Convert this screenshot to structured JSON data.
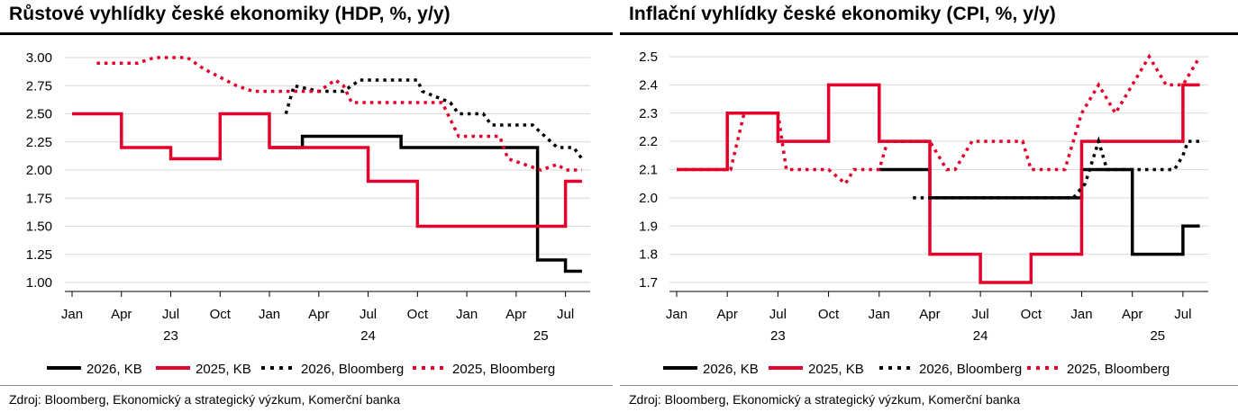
{
  "colors": {
    "kb2026": "#000000",
    "kb2025": "#e4002b",
    "bb2026": "#000000",
    "bb2025": "#e4002b",
    "grid": "#d9d9d9"
  },
  "legend": [
    {
      "label": "2026, KB",
      "style": "solid",
      "color": "#000000"
    },
    {
      "label": "2025, KB",
      "style": "solid",
      "color": "#e4002b"
    },
    {
      "label": "2026, Bloomberg",
      "style": "dotted",
      "color": "#000000"
    },
    {
      "label": "2025, Bloomberg",
      "style": "dotted",
      "color": "#e4002b"
    }
  ],
  "chart_data": [
    {
      "type": "line",
      "title": "Růstové vyhlídky české ekonomiky (HDP, %, y/y)",
      "source": "Zdroj: Bloomberg, Ekonomický a strategický výzkum, Komerční banka",
      "x_ticks": [
        "Jan",
        "Apr",
        "Jul",
        "Oct",
        "Jan",
        "Apr",
        "Jul",
        "Oct",
        "Jan",
        "Apr",
        "Jul"
      ],
      "year_labels": [
        "23",
        "24",
        "25"
      ],
      "x_range": [
        0,
        31.5
      ],
      "ylim": [
        1.0,
        3.0
      ],
      "y_ticks": [
        "1.00",
        "1.25",
        "1.50",
        "1.75",
        "2.00",
        "2.25",
        "2.50",
        "2.75",
        "3.00"
      ],
      "grid": "horizontal",
      "legend_position": "bottom",
      "series": [
        {
          "name": "2026, KB",
          "style": "solid",
          "color": "#000000",
          "points": [
            [
              12,
              2.2
            ],
            [
              14,
              2.2
            ],
            [
              14,
              2.3
            ],
            [
              20,
              2.3
            ],
            [
              20,
              2.2
            ],
            [
              28.3,
              2.2
            ],
            [
              28.3,
              1.2
            ],
            [
              30,
              1.2
            ],
            [
              30,
              1.1
            ],
            [
              31,
              1.1
            ]
          ]
        },
        {
          "name": "2025, KB",
          "style": "solid",
          "color": "#e4002b",
          "points": [
            [
              0,
              2.5
            ],
            [
              3,
              2.5
            ],
            [
              3,
              2.2
            ],
            [
              6,
              2.2
            ],
            [
              6,
              2.1
            ],
            [
              9,
              2.1
            ],
            [
              9,
              2.5
            ],
            [
              12,
              2.5
            ],
            [
              12,
              2.2
            ],
            [
              18,
              2.2
            ],
            [
              18,
              1.9
            ],
            [
              21,
              1.9
            ],
            [
              21,
              1.5
            ],
            [
              30,
              1.5
            ],
            [
              30,
              1.9
            ],
            [
              31,
              1.9
            ]
          ]
        },
        {
          "name": "2026, Bloomberg",
          "style": "dotted",
          "color": "#000000",
          "points": [
            [
              13,
              2.5
            ],
            [
              13.5,
              2.75
            ],
            [
              15,
              2.7
            ],
            [
              16.5,
              2.7
            ],
            [
              17.5,
              2.8
            ],
            [
              21,
              2.8
            ],
            [
              21.3,
              2.7
            ],
            [
              23,
              2.6
            ],
            [
              23.5,
              2.5
            ],
            [
              25,
              2.5
            ],
            [
              25.5,
              2.4
            ],
            [
              28,
              2.4
            ],
            [
              29.5,
              2.2
            ],
            [
              30.5,
              2.2
            ],
            [
              31,
              2.1
            ]
          ]
        },
        {
          "name": "2025, Bloomberg",
          "style": "dotted",
          "color": "#e4002b",
          "points": [
            [
              1.5,
              2.95
            ],
            [
              4,
              2.95
            ],
            [
              5,
              3.0
            ],
            [
              7,
              3.0
            ],
            [
              8,
              2.9
            ],
            [
              10,
              2.75
            ],
            [
              11,
              2.7
            ],
            [
              15,
              2.7
            ],
            [
              16,
              2.8
            ],
            [
              16.5,
              2.75
            ],
            [
              17,
              2.6
            ],
            [
              22.5,
              2.6
            ],
            [
              23.5,
              2.3
            ],
            [
              26,
              2.3
            ],
            [
              26.5,
              2.1
            ],
            [
              28.5,
              2.0
            ],
            [
              29.5,
              2.05
            ],
            [
              30,
              2.0
            ],
            [
              31,
              2.0
            ]
          ]
        }
      ]
    },
    {
      "type": "line",
      "title": "Inflační vyhlídky české ekonomiky (CPI, %, y/y)",
      "source": "Zdroj: Bloomberg, Ekonomický a strategický výzkum, Komerční banka",
      "x_ticks": [
        "Jan",
        "Apr",
        "Jul",
        "Oct",
        "Jan",
        "Apr",
        "Jul",
        "Oct",
        "Jan",
        "Apr",
        "Jul"
      ],
      "year_labels": [
        "23",
        "24",
        "25"
      ],
      "x_range": [
        0,
        31.5
      ],
      "ylim": [
        1.7,
        2.5
      ],
      "y_ticks": [
        "1.7",
        "1.8",
        "1.9",
        "2.0",
        "2.1",
        "2.2",
        "2.3",
        "2.4",
        "2.5"
      ],
      "grid": "horizontal",
      "legend_position": "bottom",
      "series": [
        {
          "name": "2026, KB",
          "style": "solid",
          "color": "#000000",
          "points": [
            [
              12,
              2.1
            ],
            [
              15,
              2.1
            ],
            [
              15,
              2.0
            ],
            [
              24,
              2.0
            ],
            [
              24,
              2.1
            ],
            [
              27,
              2.1
            ],
            [
              27,
              1.8
            ],
            [
              30,
              1.8
            ],
            [
              30,
              1.9
            ],
            [
              31,
              1.9
            ]
          ]
        },
        {
          "name": "2025, KB",
          "style": "solid",
          "color": "#e4002b",
          "points": [
            [
              0,
              2.1
            ],
            [
              3,
              2.1
            ],
            [
              3,
              2.3
            ],
            [
              6,
              2.3
            ],
            [
              6,
              2.2
            ],
            [
              9,
              2.2
            ],
            [
              9,
              2.4
            ],
            [
              12,
              2.4
            ],
            [
              12,
              2.2
            ],
            [
              15,
              2.2
            ],
            [
              15,
              1.8
            ],
            [
              18,
              1.8
            ],
            [
              18,
              1.7
            ],
            [
              21,
              1.7
            ],
            [
              21,
              1.8
            ],
            [
              24,
              1.8
            ],
            [
              24,
              2.2
            ],
            [
              30,
              2.2
            ],
            [
              30,
              2.4
            ],
            [
              31,
              2.4
            ]
          ]
        },
        {
          "name": "2026, Bloomberg",
          "style": "dotted",
          "color": "#000000",
          "points": [
            [
              14,
              2.0
            ],
            [
              23.5,
              2.0
            ],
            [
              24.2,
              2.05
            ],
            [
              25,
              2.2
            ],
            [
              25.5,
              2.1
            ],
            [
              29.5,
              2.1
            ],
            [
              30,
              2.15
            ],
            [
              30.3,
              2.2
            ],
            [
              31,
              2.2
            ]
          ]
        },
        {
          "name": "2025, Bloomberg",
          "style": "dotted",
          "color": "#e4002b",
          "points": [
            [
              0,
              2.1
            ],
            [
              3.2,
              2.1
            ],
            [
              4,
              2.3
            ],
            [
              6,
              2.3
            ],
            [
              6.5,
              2.1
            ],
            [
              9,
              2.1
            ],
            [
              10,
              2.05
            ],
            [
              10.5,
              2.1
            ],
            [
              12,
              2.1
            ],
            [
              12.5,
              2.2
            ],
            [
              15,
              2.2
            ],
            [
              16,
              2.1
            ],
            [
              16.5,
              2.1
            ],
            [
              17.5,
              2.2
            ],
            [
              20.5,
              2.2
            ],
            [
              21,
              2.1
            ],
            [
              23,
              2.1
            ],
            [
              24,
              2.3
            ],
            [
              25,
              2.4
            ],
            [
              26,
              2.3
            ],
            [
              27,
              2.4
            ],
            [
              28,
              2.5
            ],
            [
              29,
              2.4
            ],
            [
              30,
              2.4
            ],
            [
              31,
              2.5
            ]
          ]
        }
      ]
    }
  ]
}
